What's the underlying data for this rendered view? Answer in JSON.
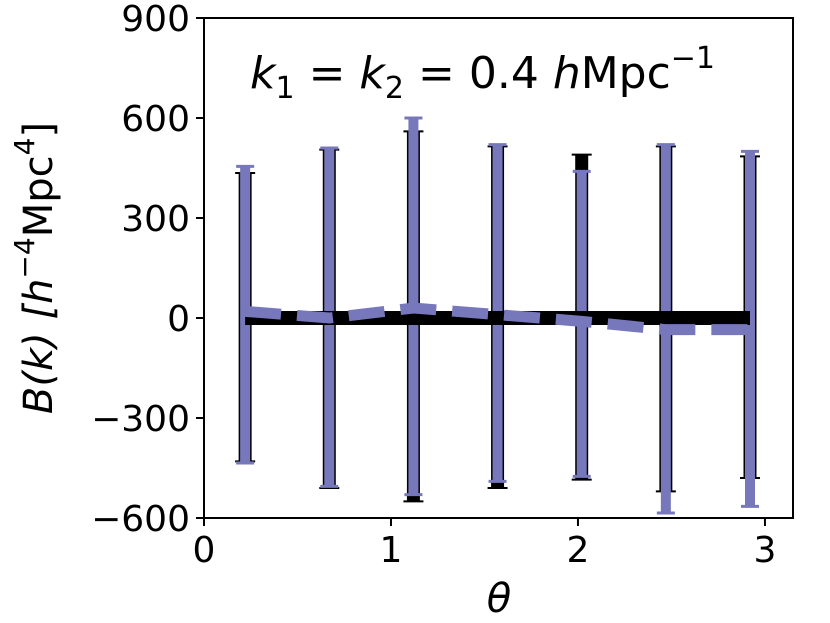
{
  "chart_data": {
    "type": "line",
    "annotation": {
      "k1": "k",
      "k1_sub": "1",
      "k2": "k",
      "k2_sub": "2",
      "eq": " = ",
      "value": "0.4 ",
      "h": "h",
      "unit": "Mpc",
      "unit_sup": "−1"
    },
    "xlabel": "θ",
    "ylabel": {
      "main": "B(k) [",
      "h": "h",
      "h_sup": "−4",
      "unit": "Mpc",
      "unit_sup": "4",
      "close": "]"
    },
    "xlim": [
      0,
      3.15
    ],
    "ylim": [
      -600,
      900
    ],
    "xticks": [
      0,
      1,
      2,
      3
    ],
    "xtick_labels": [
      "0",
      "1",
      "2",
      "3"
    ],
    "yticks": [
      -600,
      -300,
      0,
      300,
      600,
      900
    ],
    "ytick_labels": [
      "−600",
      "−300",
      "0",
      "300",
      "600",
      "900"
    ],
    "grid": false,
    "colors": {
      "series_a": "#000000",
      "series_b": "#7777bb"
    },
    "series": [
      {
        "style": "solid",
        "x": [
          0.22,
          0.67,
          1.12,
          1.57,
          2.02,
          2.47,
          2.92
        ],
        "y": [
          0,
          0,
          0,
          0,
          0,
          0,
          0
        ],
        "err_low": [
          -430,
          -510,
          -550,
          -510,
          -485,
          -520,
          -480
        ],
        "err_high": [
          435,
          505,
          560,
          515,
          490,
          515,
          485
        ]
      },
      {
        "style": "dashed",
        "x": [
          0.22,
          0.67,
          1.12,
          1.57,
          2.02,
          2.47,
          2.92
        ],
        "y": [
          20,
          0,
          30,
          10,
          -10,
          -35,
          -35
        ],
        "err_low": [
          -435,
          -505,
          -530,
          -490,
          -475,
          -585,
          -565
        ],
        "err_high": [
          455,
          510,
          600,
          520,
          440,
          520,
          500
        ]
      }
    ]
  }
}
